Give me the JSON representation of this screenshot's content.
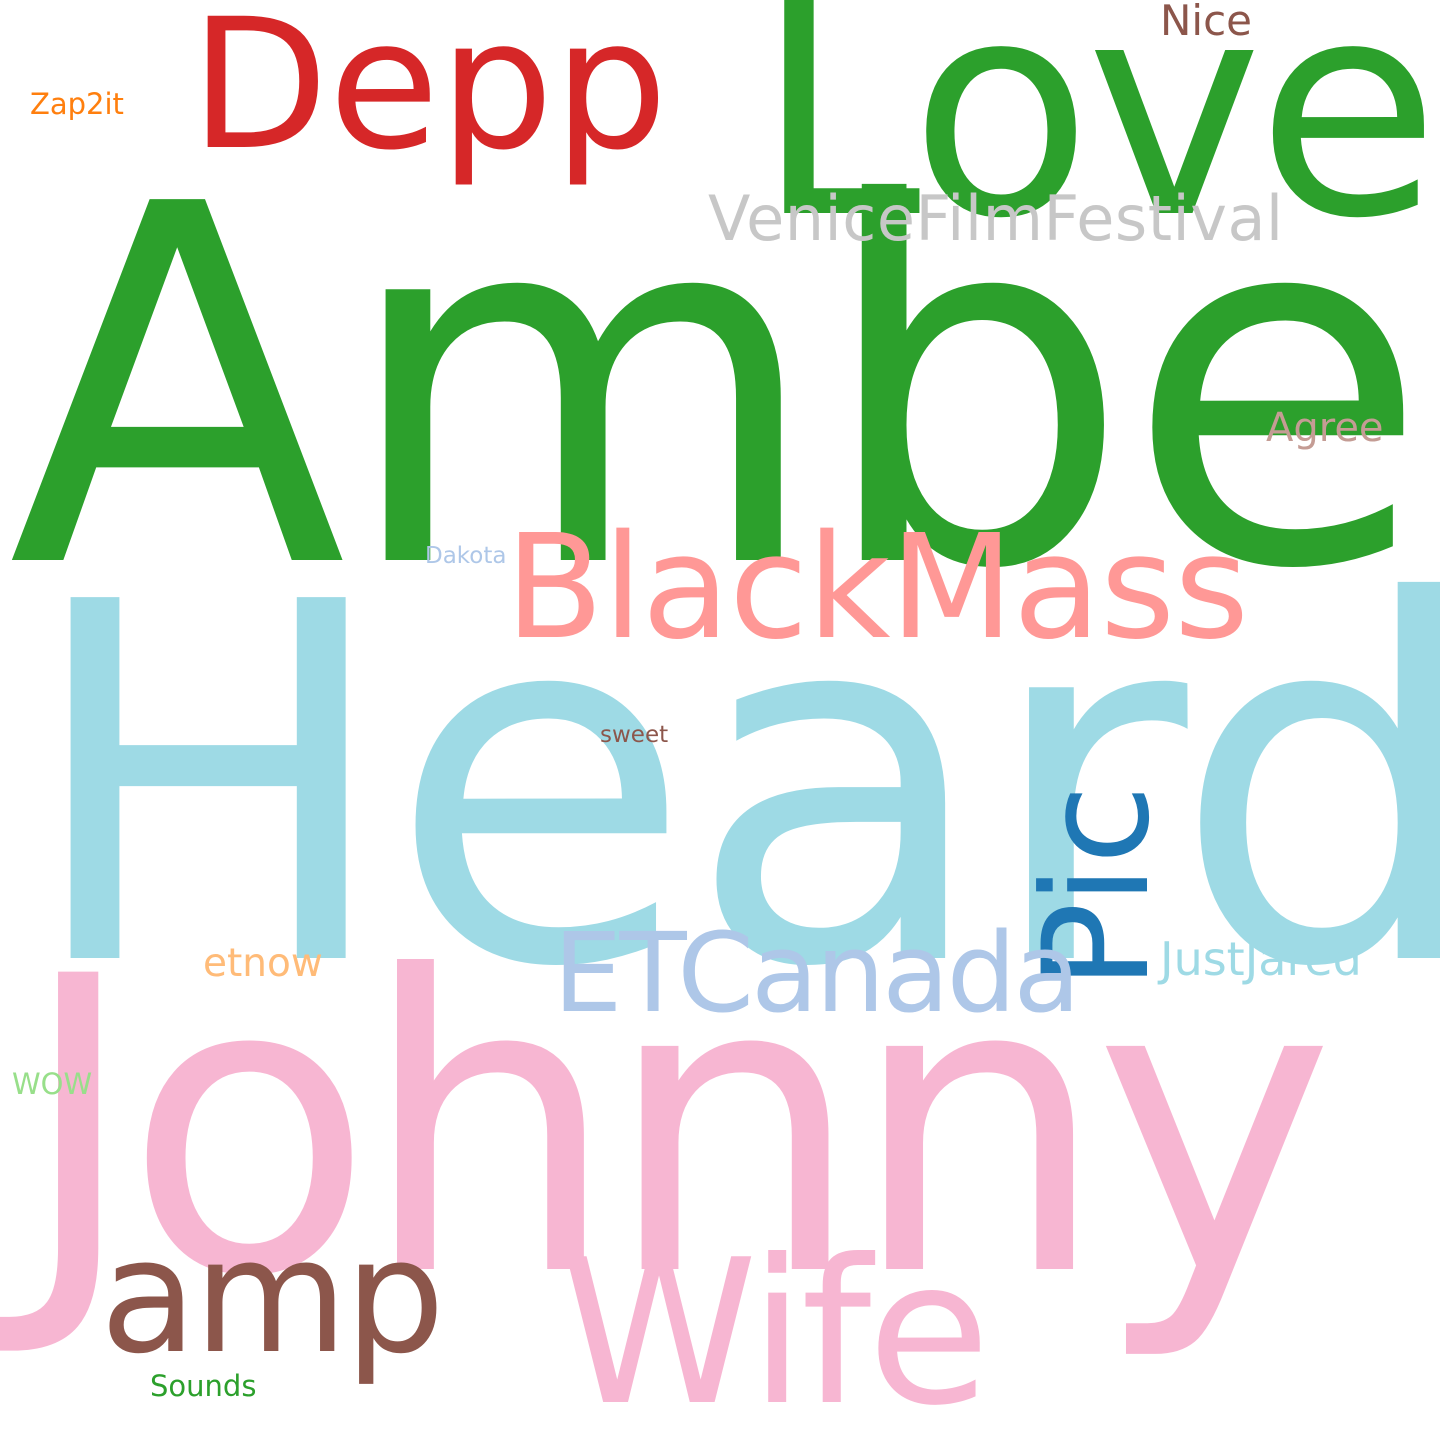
{
  "words": {
    "amber": {
      "text": "Amber",
      "color": "#2ca02c"
    },
    "heard": {
      "text": "Heard",
      "color": "#9edae5"
    },
    "johnny": {
      "text": "Johnny",
      "color": "#f7b6d2"
    },
    "love": {
      "text": "Love",
      "color": "#2ca02c"
    },
    "depp": {
      "text": "Depp",
      "color": "#d62728"
    },
    "venice": {
      "text": "VeniceFilmFestival",
      "color": "#c7c7c7"
    },
    "nice": {
      "text": "Nice",
      "color": "#8c564b"
    },
    "zap2it": {
      "text": "Zap2it",
      "color": "#ff7f0e"
    },
    "agree": {
      "text": "Agree",
      "color": "#c49c94"
    },
    "blackmass": {
      "text": "BlackMass",
      "color": "#ff9896"
    },
    "dakota": {
      "text": "Dakota",
      "color": "#aec7e8"
    },
    "sweet": {
      "text": "sweet",
      "color": "#8c564b"
    },
    "pic": {
      "text": "Pic",
      "color": "#1f77b4"
    },
    "etcanada": {
      "text": "ETCanada",
      "color": "#aec7e8"
    },
    "justjared": {
      "text": "JustJared",
      "color": "#9edae5"
    },
    "etnow": {
      "text": "etnow",
      "color": "#ffbb78"
    },
    "wow": {
      "text": "WOW",
      "color": "#98df8a"
    },
    "amp": {
      "text": "amp",
      "color": "#8c564b"
    },
    "wife": {
      "text": "Wife",
      "color": "#f7b6d2"
    },
    "sounds": {
      "text": "Sounds",
      "color": "#2ca02c"
    }
  }
}
